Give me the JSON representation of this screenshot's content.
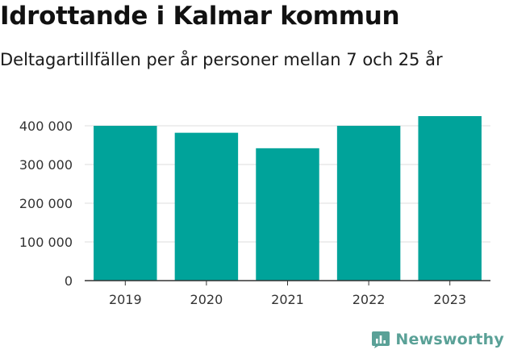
{
  "header": {
    "title": "Idrottande i Kalmar kommun",
    "subtitle": "Deltagartillfällen per år personer mellan 7 och 25 år"
  },
  "brand": {
    "name": "Newsworthy",
    "icon": "bar-chart-logo-icon",
    "color": "#5aa197"
  },
  "chart_data": {
    "type": "bar",
    "title": "Idrottande i Kalmar kommun",
    "subtitle": "Deltagartillfällen per år personer mellan 7 och 25 år",
    "xlabel": "",
    "ylabel": "",
    "categories": [
      "2019",
      "2020",
      "2021",
      "2022",
      "2023"
    ],
    "values": [
      400000,
      382000,
      342000,
      400000,
      425000
    ],
    "ylim": [
      0,
      450000
    ],
    "yticks": [
      0,
      100000,
      200000,
      300000,
      400000
    ],
    "ytick_labels": [
      "0",
      "100 000",
      "200 000",
      "300 000",
      "400 000"
    ],
    "grid": true,
    "legend": "none",
    "bar_color": "#00a39a",
    "grid_color": "#dddddd",
    "axis_color": "#333333"
  }
}
